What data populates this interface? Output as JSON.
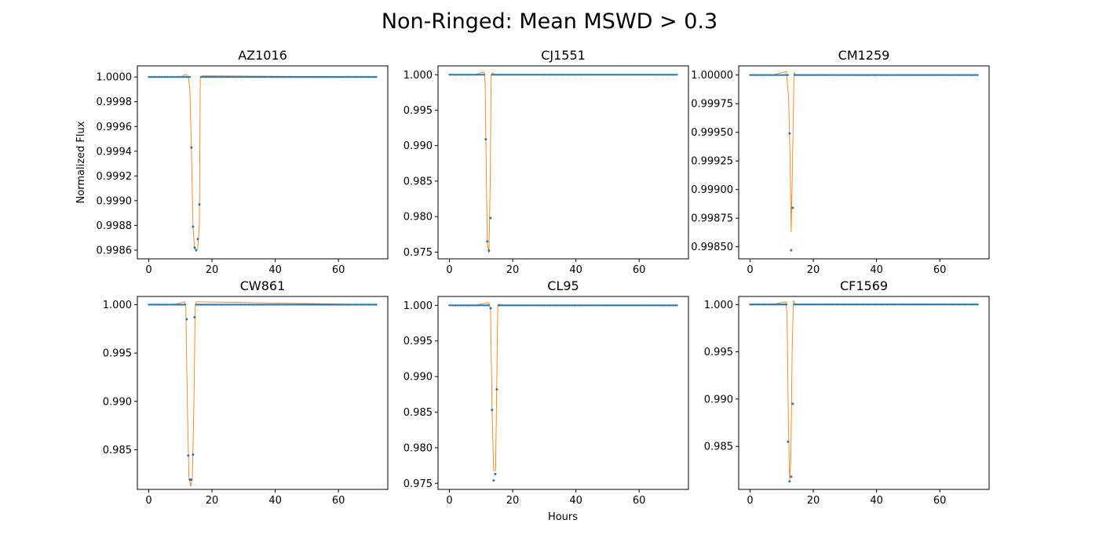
{
  "figure": {
    "title": "Non-Ringed: Mean MSWD > 0.3",
    "ylabel": "Normalized Flux",
    "xlabel": "Hours"
  },
  "colors": {
    "points": "#1f77b4",
    "model": "#ff7f0e",
    "axes": "#000000",
    "background": "#ffffff"
  },
  "chart_data": [
    {
      "type": "scatter",
      "title": "AZ1016",
      "xlim": [
        -3.6,
        75.6
      ],
      "ylim": [
        0.99853,
        1.00009
      ],
      "xticks": [
        0,
        20,
        40,
        60
      ],
      "xtick_labels": [
        "0",
        "20",
        "40",
        "60"
      ],
      "yticks": [
        0.9986,
        0.9988,
        0.999,
        0.9992,
        0.9994,
        0.9996,
        0.9998,
        1.0
      ],
      "ytick_labels": [
        "0.9986",
        "0.9988",
        "0.9990",
        "0.9992",
        "0.9994",
        "0.9996",
        "0.9998",
        "1.0000"
      ],
      "legend": "none",
      "grid": false,
      "series": [
        {
          "kind": "points",
          "x": [
            13.5,
            14.0,
            14.5,
            15.0,
            15.5,
            16.0
          ],
          "y": [
            0.99943,
            0.99879,
            0.99862,
            0.9986,
            0.99869,
            0.99897
          ],
          "baseline": 1.0,
          "x_range": [
            0,
            72
          ],
          "step": 0.5
        },
        {
          "kind": "line",
          "x": [
            0,
            10,
            11.5,
            12.5,
            13.0,
            13.5,
            14.0,
            14.5,
            15.0,
            15.5,
            16.0,
            16.3,
            17.0,
            72
          ],
          "y": [
            1.0,
            1.0,
            1.00002,
            1.00001,
            0.9999,
            0.9994,
            0.99878,
            0.99862,
            0.99859,
            0.99862,
            0.9988,
            1.0,
            1.00001,
            1.0
          ]
        }
      ]
    },
    {
      "type": "scatter",
      "title": "CJ1551",
      "xlim": [
        -3.6,
        75.6
      ],
      "ylim": [
        0.97405,
        1.00125
      ],
      "xticks": [
        0,
        20,
        40,
        60
      ],
      "xtick_labels": [
        "0",
        "20",
        "40",
        "60"
      ],
      "yticks": [
        0.975,
        0.98,
        0.985,
        0.99,
        0.995,
        1.0
      ],
      "ytick_labels": [
        "0.975",
        "0.980",
        "0.985",
        "0.990",
        "0.995",
        "1.000"
      ],
      "legend": "none",
      "grid": false,
      "series": [
        {
          "kind": "points",
          "x": [
            11.5,
            12.0,
            12.5,
            13.0
          ],
          "y": [
            0.9909,
            0.9765,
            0.9752,
            0.9798
          ],
          "baseline": 1.0,
          "x_range": [
            0,
            72
          ],
          "step": 0.5
        },
        {
          "kind": "line",
          "x": [
            0,
            8,
            11.0,
            11.3,
            11.7,
            12.0,
            12.5,
            12.9,
            13.2,
            13.6,
            14.5,
            72
          ],
          "y": [
            1.0,
            1.0,
            1.0004,
            0.999,
            0.985,
            0.9762,
            0.9749,
            0.985,
            1.0,
            1.0003,
            1.0,
            1.0
          ]
        }
      ]
    },
    {
      "type": "scatter",
      "title": "CM1259",
      "xlim": [
        -3.6,
        75.6
      ],
      "ylim": [
        0.998395,
        1.00008
      ],
      "xticks": [
        0,
        20,
        40,
        60
      ],
      "xtick_labels": [
        "0",
        "20",
        "40",
        "60"
      ],
      "yticks": [
        0.9985,
        0.99875,
        0.999,
        0.99925,
        0.9995,
        0.99975,
        1.0
      ],
      "ytick_labels": [
        "0.99850",
        "0.99875",
        "0.99900",
        "0.99925",
        "0.99950",
        "0.99975",
        "1.00000"
      ],
      "legend": "none",
      "grid": false,
      "series": [
        {
          "kind": "points",
          "x": [
            12.5,
            13.0,
            13.5
          ],
          "y": [
            0.99949,
            0.99847,
            0.99884
          ],
          "baseline": 1.0,
          "x_range": [
            0,
            72
          ],
          "step": 0.5
        },
        {
          "kind": "line",
          "x": [
            0,
            7,
            11.5,
            12.2,
            12.7,
            13.0,
            13.4,
            13.9,
            14.5,
            72
          ],
          "y": [
            1.0,
            1.0,
            1.00003,
            0.9998,
            0.9992,
            0.99863,
            0.9992,
            1.00002,
            1.0,
            1.0
          ]
        }
      ]
    },
    {
      "type": "scatter",
      "title": "CW861",
      "xlim": [
        -3.6,
        75.6
      ],
      "ylim": [
        0.9809,
        1.00085
      ],
      "xticks": [
        0,
        20,
        40,
        60
      ],
      "xtick_labels": [
        "0",
        "20",
        "40",
        "60"
      ],
      "yticks": [
        0.985,
        0.99,
        0.995,
        1.0
      ],
      "ytick_labels": [
        "0.985",
        "0.990",
        "0.995",
        "1.000"
      ],
      "legend": "none",
      "grid": false,
      "series": [
        {
          "kind": "points",
          "x": [
            12.0,
            12.5,
            13.0,
            13.5,
            14.0,
            14.5
          ],
          "y": [
            0.9985,
            0.9844,
            0.9819,
            0.9819,
            0.9845,
            0.9987
          ],
          "baseline": 1.0,
          "x_range": [
            0,
            72
          ],
          "step": 0.5
        },
        {
          "kind": "line",
          "x": [
            0,
            8,
            11.3,
            11.7,
            12.2,
            12.7,
            13.3,
            13.8,
            14.3,
            14.7,
            15.2,
            72
          ],
          "y": [
            1.0,
            1.0,
            1.0003,
            1.0,
            0.99,
            0.9822,
            0.9812,
            0.9822,
            0.99,
            1.0,
            1.0003,
            1.0
          ]
        }
      ]
    },
    {
      "type": "scatter",
      "title": "CL95",
      "xlim": [
        -3.6,
        75.6
      ],
      "ylim": [
        0.97415,
        1.00125
      ],
      "xticks": [
        0,
        20,
        40,
        60
      ],
      "xtick_labels": [
        "0",
        "20",
        "40",
        "60"
      ],
      "yticks": [
        0.975,
        0.98,
        0.985,
        0.99,
        0.995,
        1.0
      ],
      "ytick_labels": [
        "0.975",
        "0.980",
        "0.985",
        "0.990",
        "0.995",
        "1.000"
      ],
      "legend": "none",
      "grid": false,
      "series": [
        {
          "kind": "points",
          "x": [
            13.0,
            13.5,
            14.0,
            14.5,
            15.0
          ],
          "y": [
            0.9996,
            0.9853,
            0.9754,
            0.9763,
            0.9882
          ],
          "baseline": 1.0,
          "x_range": [
            0,
            72
          ],
          "step": 0.5
        },
        {
          "kind": "line",
          "x": [
            0,
            8,
            12.5,
            13.0,
            13.5,
            14.0,
            14.6,
            15.0,
            15.3,
            15.7,
            16.5,
            72
          ],
          "y": [
            1.0,
            1.0,
            1.0004,
            0.9995,
            0.985,
            0.9768,
            0.9768,
            0.99,
            1.0,
            1.0002,
            1.0,
            1.0
          ]
        }
      ]
    },
    {
      "type": "scatter",
      "title": "CF1569",
      "xlim": [
        -3.6,
        75.6
      ],
      "ylim": [
        0.98045,
        1.00085
      ],
      "xticks": [
        0,
        20,
        40,
        60
      ],
      "xtick_labels": [
        "0",
        "20",
        "40",
        "60"
      ],
      "yticks": [
        0.985,
        0.99,
        0.995,
        1.0
      ],
      "ytick_labels": [
        "0.985",
        "0.990",
        "0.995",
        "1.000"
      ],
      "legend": "none",
      "grid": false,
      "series": [
        {
          "kind": "points",
          "x": [
            12.0,
            12.5,
            13.0,
            13.5
          ],
          "y": [
            0.9855,
            0.9813,
            0.9818,
            0.9895
          ],
          "baseline": 1.0,
          "x_range": [
            0,
            72
          ],
          "step": 0.5
        },
        {
          "kind": "line",
          "x": [
            0,
            7,
            11.3,
            11.7,
            12.1,
            12.5,
            12.9,
            13.3,
            13.7,
            14.5,
            72
          ],
          "y": [
            1.0,
            1.0,
            1.0003,
            0.999,
            0.988,
            0.9815,
            0.9835,
            0.995,
            1.0004,
            1.0,
            1.0
          ]
        }
      ]
    }
  ]
}
